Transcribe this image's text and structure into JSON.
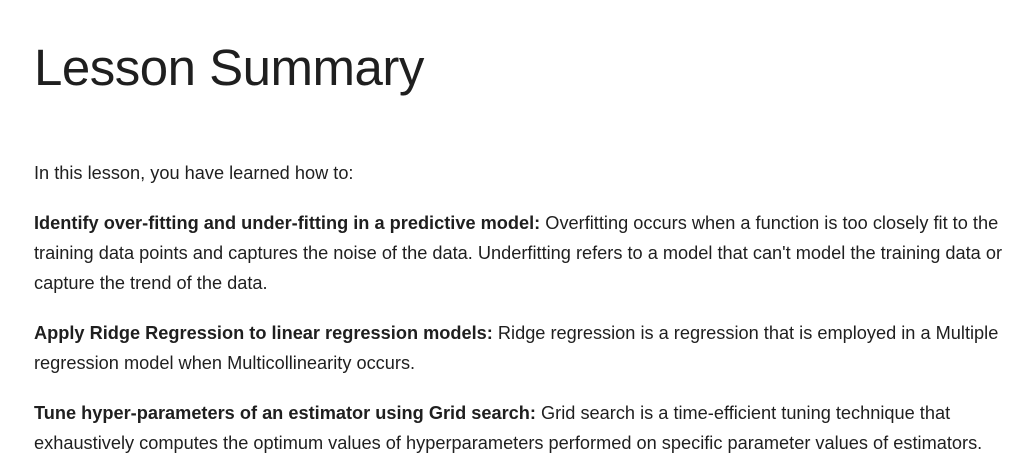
{
  "page": {
    "title": "Lesson Summary",
    "intro": "In this lesson, you have learned how to:"
  },
  "items": [
    {
      "heading": "Identify over-fitting and under-fitting in a predictive model:",
      "body": "Overfitting occurs when a function is too closely fit to the training data points and captures the noise of the data. Underfitting refers to a model that can't model the training data or capture the trend of the data."
    },
    {
      "heading": "Apply Ridge Regression to linear regression models:",
      "body": "Ridge regression is a regression that is employed in a Multiple regression model when Multicollinearity occurs."
    },
    {
      "heading": "Tune hyper-parameters of an estimator using Grid search:",
      "body": "Grid search is a time-efficient tuning technique that exhaustively computes the optimum values of hyperparameters performed on specific parameter values of estimators."
    }
  ]
}
